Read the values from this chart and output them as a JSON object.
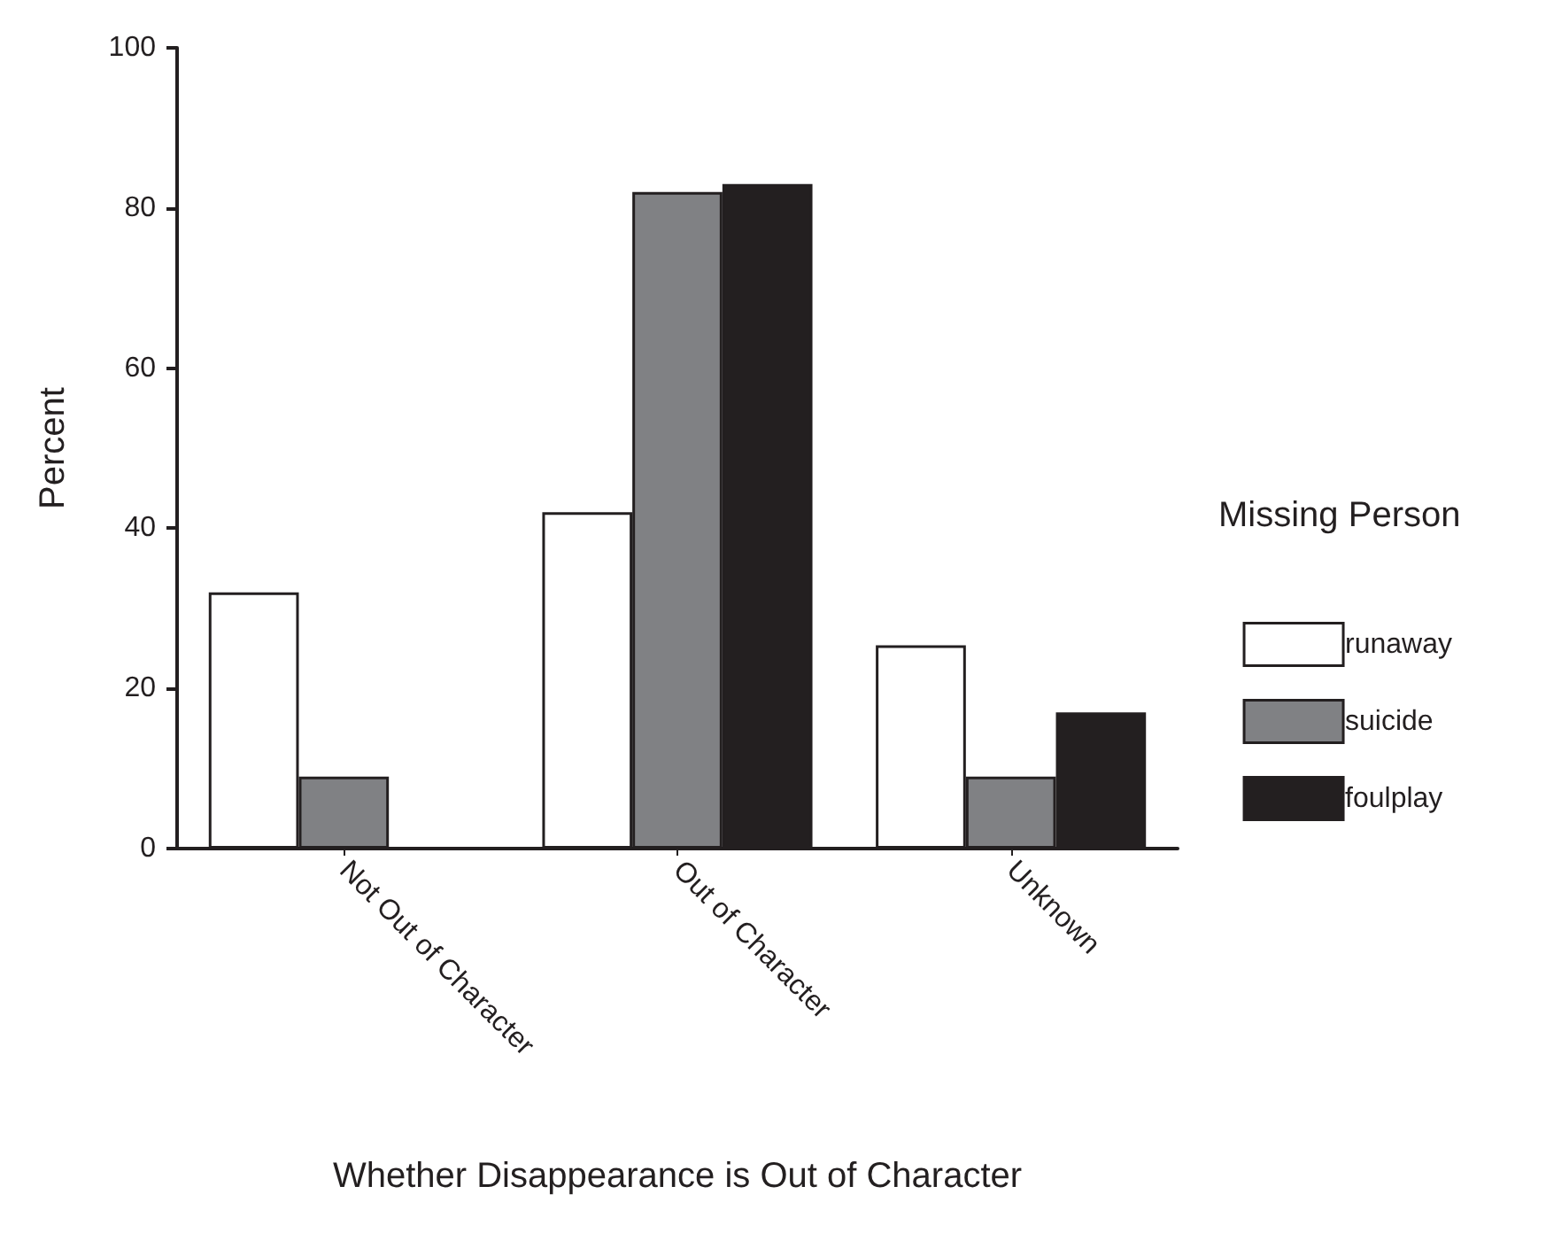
{
  "chart_data": {
    "type": "bar",
    "xlabel": "Whether Disappearance is Out of Character",
    "ylabel": "Percent",
    "legend_title": "Missing Person",
    "legend": "right",
    "grid": false,
    "categories": [
      "Not Out of Character",
      "Out of Character",
      "Unknown"
    ],
    "series": [
      {
        "name": "runaway",
        "color": "#ffffff",
        "values": [
          32,
          42,
          25.4
        ]
      },
      {
        "name": "suicide",
        "color": "#808184",
        "values": [
          9,
          82,
          9
        ]
      },
      {
        "name": "foulplay",
        "color": "#231f20",
        "values": [
          0,
          83,
          17
        ]
      }
    ],
    "ylim": [
      0,
      100
    ],
    "yticks": [
      0,
      20,
      40,
      60,
      80,
      100
    ]
  }
}
